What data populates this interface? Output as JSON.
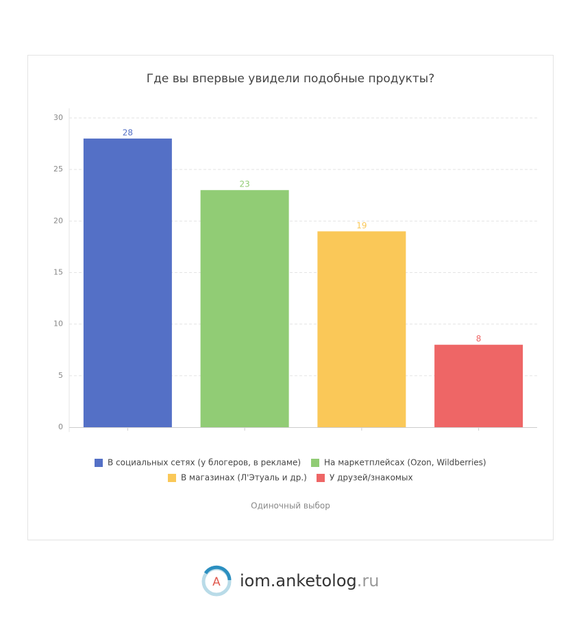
{
  "chart_data": {
    "type": "bar",
    "title": "Где вы впервые увидели подобные продукты?",
    "subtitle": "Одиночный выбор",
    "categories": [
      null
    ],
    "series": [
      {
        "name": "В социальных сетях (у блогеров, в рекламе)",
        "color": "#5470c6",
        "values": [
          28
        ]
      },
      {
        "name": "На маркетплейсах (Ozon, Wildberries)",
        "color": "#91cc75",
        "values": [
          23
        ]
      },
      {
        "name": "В магазинах (Л'Этуаль и др.)",
        "color": "#fac858",
        "values": [
          19
        ]
      },
      {
        "name": "У друзей/знакомых",
        "color": "#ee6666",
        "values": [
          8
        ]
      }
    ],
    "ylim": [
      0,
      30
    ],
    "yticks": [
      0,
      5,
      10,
      15,
      20,
      25,
      30
    ],
    "grid": true,
    "legend": "bottom"
  },
  "footer": {
    "logo_letter": "А",
    "brand": "iom.anketolog",
    "tld": ".ru"
  }
}
